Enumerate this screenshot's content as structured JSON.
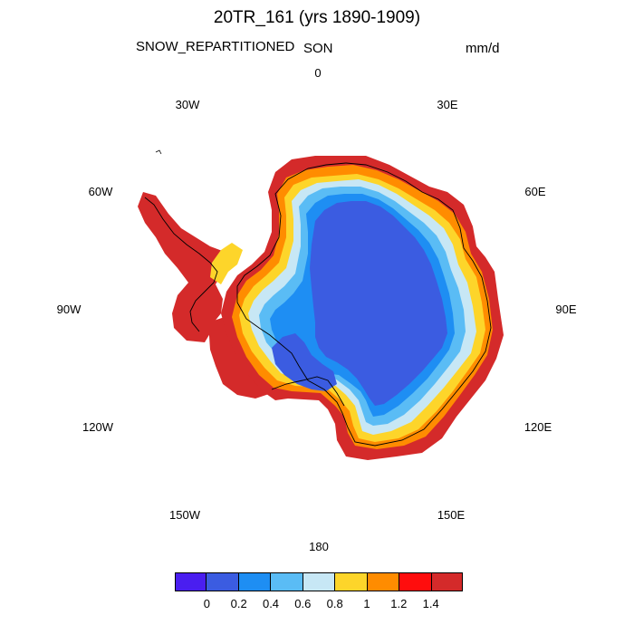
{
  "title": "20TR_161 (yrs 1890-1909)",
  "variable": "SNOW_REPARTITIONED",
  "season": "SON",
  "units": "mm/d",
  "longitude_labels": {
    "lon_0": "0",
    "lon_30e": "30E",
    "lon_60e": "60E",
    "lon_90e": "90E",
    "lon_120e": "120E",
    "lon_150e": "150E",
    "lon_180": "180",
    "lon_150w": "150W",
    "lon_120w": "120W",
    "lon_90w": "90W",
    "lon_60w": "60W",
    "lon_30w": "30W"
  },
  "colorbar": {
    "colors": [
      "#4a1ef0",
      "#3b5ce1",
      "#1e8ef3",
      "#5abcf5",
      "#c7e7f5",
      "#fdd52a",
      "#ff8c00",
      "#ff0d0d",
      "#d42a2a"
    ],
    "ticks": [
      "0",
      "0.2",
      "0.4",
      "0.6",
      "0.8",
      "1",
      "1.2",
      "1.4"
    ]
  },
  "colors": {
    "interior": "#3b5ce1",
    "mid": "#1e8ef3",
    "light_blue": "#5abcf5",
    "pale": "#c7e7f5",
    "yellow": "#fdd52a",
    "orange": "#ff8c00",
    "red": "#ff0d0d",
    "dark_red": "#d42a2a"
  }
}
